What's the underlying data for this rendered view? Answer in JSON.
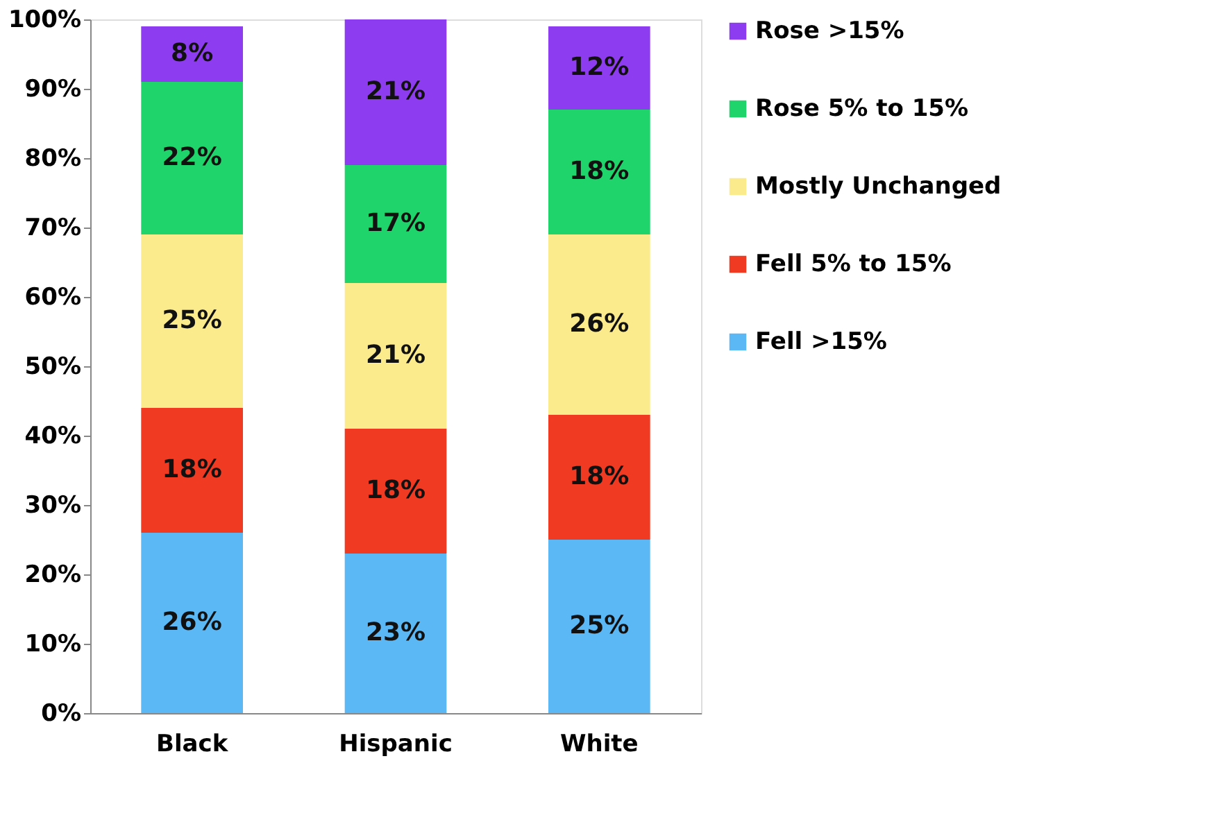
{
  "chart_data": {
    "type": "bar",
    "stacked": true,
    "categories": [
      "Black",
      "Hispanic",
      "White"
    ],
    "series": [
      {
        "name": "Fell >15%",
        "color": "#5bb8f5",
        "values": [
          26,
          23,
          25
        ],
        "value_labels": [
          "26%",
          "23%",
          "25%"
        ]
      },
      {
        "name": "Fell 5% to 15%",
        "color": "#f03a22",
        "values": [
          18,
          18,
          18
        ],
        "value_labels": [
          "18%",
          "18%",
          "18%"
        ]
      },
      {
        "name": "Mostly Unchanged",
        "color": "#fbeb8c",
        "values": [
          25,
          21,
          26
        ],
        "value_labels": [
          "25%",
          "21%",
          "26%"
        ]
      },
      {
        "name": "Rose 5% to 15%",
        "color": "#1fd46a",
        "values": [
          22,
          17,
          18
        ],
        "value_labels": [
          "22%",
          "17%",
          "18%"
        ]
      },
      {
        "name": "Rose >15%",
        "color": "#8e3cf0",
        "values": [
          8,
          21,
          12
        ],
        "value_labels": [
          "8%",
          "21%",
          "12%"
        ]
      }
    ],
    "ylim": [
      0,
      100
    ],
    "yticks": [
      {
        "value": 0,
        "label": "0%"
      },
      {
        "value": 10,
        "label": "10%"
      },
      {
        "value": 20,
        "label": "20%"
      },
      {
        "value": 30,
        "label": "30%"
      },
      {
        "value": 40,
        "label": "40%"
      },
      {
        "value": 50,
        "label": "50%"
      },
      {
        "value": 60,
        "label": "60%"
      },
      {
        "value": 70,
        "label": "70%"
      },
      {
        "value": 80,
        "label": "80%"
      },
      {
        "value": 90,
        "label": "90%"
      },
      {
        "value": 100,
        "label": "100%"
      }
    ],
    "legend": "right",
    "grid": false
  }
}
